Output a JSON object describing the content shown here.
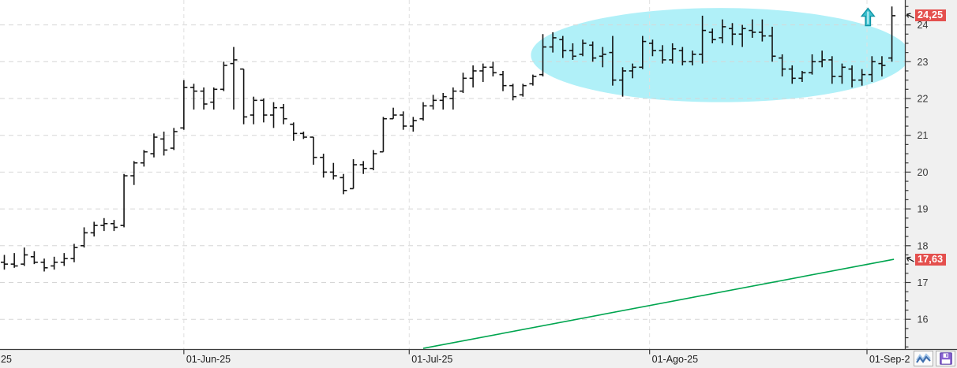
{
  "chart_data": {
    "type": "ohlc-bar",
    "title": "",
    "xlabel": "",
    "ylabel": "",
    "x_ticks": [
      {
        "label": "25",
        "bar": -0.4,
        "tick": false
      },
      {
        "label": "01-Jun-25",
        "bar": 18.0,
        "tick": true
      },
      {
        "label": "01-Jul-25",
        "bar": 40.6,
        "tick": true
      },
      {
        "label": "01-Ago-25",
        "bar": 64.7,
        "tick": true
      },
      {
        "label": "01-Sep-2",
        "bar": 86.5,
        "tick": true
      }
    ],
    "y_axis": {
      "labels": [
        16,
        17,
        18,
        19,
        20,
        21,
        22,
        23,
        24
      ],
      "minor_step": 0.25,
      "major_step": 1,
      "min": 15.25,
      "max": 24.5
    },
    "grid": true,
    "legend": "none",
    "ohlc": [
      [
        17.55,
        17.75,
        17.35,
        17.5
      ],
      [
        17.5,
        17.8,
        17.4,
        17.45
      ],
      [
        17.5,
        17.95,
        17.45,
        17.75
      ],
      [
        17.7,
        17.85,
        17.5,
        17.55
      ],
      [
        17.55,
        17.65,
        17.3,
        17.4
      ],
      [
        17.45,
        17.7,
        17.35,
        17.55
      ],
      [
        17.55,
        17.8,
        17.45,
        17.65
      ],
      [
        17.65,
        18.05,
        17.55,
        17.95
      ],
      [
        18,
        18.5,
        17.95,
        18.35
      ],
      [
        18.35,
        18.65,
        18.25,
        18.55
      ],
      [
        18.55,
        18.75,
        18.4,
        18.6
      ],
      [
        18.6,
        18.7,
        18.4,
        18.5
      ],
      [
        18.55,
        19.95,
        18.5,
        19.9
      ],
      [
        19.9,
        20.3,
        19.65,
        20.25
      ],
      [
        20.25,
        20.6,
        20.15,
        20.55
      ],
      [
        20.5,
        21.05,
        20.4,
        20.95
      ],
      [
        20.9,
        21.1,
        20.45,
        20.6
      ],
      [
        20.65,
        21.2,
        20.6,
        21.1
      ],
      [
        21.2,
        22.5,
        21.15,
        22.3
      ],
      [
        22.3,
        22.4,
        21.7,
        22.2
      ],
      [
        22.2,
        22.3,
        21.7,
        21.85
      ],
      [
        21.9,
        22.3,
        21.7,
        22.25
      ],
      [
        22.25,
        23,
        22.2,
        22.9
      ],
      [
        22.95,
        23.4,
        21.7,
        23.05
      ],
      [
        22.8,
        22.8,
        21.3,
        21.5
      ],
      [
        21.55,
        22.05,
        21.3,
        21.95
      ],
      [
        21.95,
        22,
        21.35,
        21.55
      ],
      [
        21.55,
        21.9,
        21.2,
        21.75
      ],
      [
        21.75,
        21.85,
        21.3,
        21.45
      ],
      [
        21.3,
        21.35,
        20.85,
        21.05
      ],
      [
        21.05,
        21.1,
        20.9,
        20.95
      ],
      [
        20.95,
        20.95,
        20.2,
        20.4
      ],
      [
        20.4,
        20.5,
        19.85,
        20
      ],
      [
        20,
        20.25,
        19.8,
        19.9
      ],
      [
        19.85,
        19.95,
        19.4,
        19.5
      ],
      [
        19.55,
        20.35,
        19.55,
        20.2
      ],
      [
        20.2,
        20.3,
        19.95,
        20.1
      ],
      [
        20.1,
        20.6,
        20.05,
        20.5
      ],
      [
        20.55,
        21.5,
        20.55,
        21.45
      ],
      [
        21.45,
        21.75,
        21.45,
        21.55
      ],
      [
        21.55,
        21.65,
        21.15,
        21.25
      ],
      [
        21.25,
        21.5,
        21.1,
        21.4
      ],
      [
        21.45,
        21.9,
        21.4,
        21.8
      ],
      [
        21.8,
        22.1,
        21.7,
        21.95
      ],
      [
        21.95,
        22.15,
        21.7,
        22.05
      ],
      [
        22,
        22.3,
        21.7,
        22.2
      ],
      [
        22.2,
        22.7,
        22.15,
        22.55
      ],
      [
        22.55,
        22.9,
        22.3,
        22.75
      ],
      [
        22.75,
        22.95,
        22.45,
        22.85
      ],
      [
        22.85,
        23,
        22.6,
        22.7
      ],
      [
        22.65,
        22.75,
        22.2,
        22.35
      ],
      [
        22.35,
        22.4,
        21.95,
        22.05
      ],
      [
        22.1,
        22.4,
        22.05,
        22.35
      ],
      [
        22.4,
        22.65,
        22.35,
        22.6
      ],
      [
        22.65,
        23.75,
        22.6,
        23.4
      ],
      [
        23.4,
        23.8,
        23.25,
        23.65
      ],
      [
        23.6,
        23.7,
        23.1,
        23.3
      ],
      [
        23.3,
        23.5,
        23.05,
        23.15
      ],
      [
        23.2,
        23.6,
        23.15,
        23.5
      ],
      [
        23.45,
        23.55,
        23,
        23.1
      ],
      [
        23.15,
        23.4,
        22.85,
        23.2
      ],
      [
        23.25,
        23.7,
        22.35,
        22.5
      ],
      [
        22.5,
        22.85,
        22.05,
        22.75
      ],
      [
        22.75,
        22.95,
        22.55,
        22.85
      ],
      [
        22.85,
        23.7,
        22.8,
        23.55
      ],
      [
        23.5,
        23.6,
        23.15,
        23.3
      ],
      [
        23.3,
        23.45,
        22.95,
        23.05
      ],
      [
        23.05,
        23.5,
        22.95,
        23.35
      ],
      [
        23.3,
        23.4,
        22.9,
        23
      ],
      [
        23,
        23.3,
        22.9,
        23.2
      ],
      [
        23.2,
        24.25,
        22.95,
        23.85
      ],
      [
        23.8,
        23.9,
        23.5,
        23.6
      ],
      [
        23.65,
        24.15,
        23.5,
        23.95
      ],
      [
        23.9,
        24.05,
        23.45,
        23.75
      ],
      [
        23.75,
        24,
        23.4,
        23.9
      ],
      [
        23.85,
        24.15,
        23.65,
        23.8
      ],
      [
        23.8,
        24.15,
        23.55,
        23.7
      ],
      [
        23.7,
        23.95,
        23,
        23.15
      ],
      [
        23.1,
        23.2,
        22.6,
        22.8
      ],
      [
        22.8,
        22.9,
        22.4,
        22.55
      ],
      [
        22.55,
        22.75,
        22.45,
        22.7
      ],
      [
        22.7,
        23.2,
        22.65,
        23
      ],
      [
        23,
        23.3,
        22.85,
        23.05
      ],
      [
        23.05,
        23.15,
        22.4,
        22.6
      ],
      [
        22.6,
        22.95,
        22.4,
        22.85
      ],
      [
        22.8,
        22.9,
        22.3,
        22.5
      ],
      [
        22.5,
        22.8,
        22.35,
        22.65
      ],
      [
        22.65,
        23.15,
        22.45,
        23
      ],
      [
        22.95,
        23.15,
        22.6,
        22.9
      ],
      [
        23.1,
        24.5,
        23,
        24.25
      ]
    ],
    "price_markers": [
      {
        "label": "24,25",
        "price": 24.25
      },
      {
        "label": "17,63",
        "price": 17.63
      }
    ],
    "trend_line": {
      "start_bar": 42.0,
      "start_price": 15.21,
      "end_bar": 89.2,
      "end_price": 17.63
    },
    "highlight_ellipse": {
      "center_bar": 71.8,
      "center_price": 23.18,
      "radius_bars": 19,
      "radius_price": 1.28
    },
    "signal_arrow": {
      "bar": 86.6,
      "tip_price": 24.45
    },
    "colors": {
      "bar": "#141414",
      "grid": "#d6d6d6",
      "axis_line": "#3c3c3c",
      "axis_bg": "#f0f0f0",
      "label_text": "#1c1c1c",
      "y_label_text": "#3a3a3a",
      "tag_bg": "#e4504e",
      "tag_text": "#ffffff",
      "ellipse": "#b0f0f8",
      "trend": "#00a54f",
      "arrow_fill": "#3cc0cf",
      "arrow_stroke": "#0f93a4",
      "arrow_inner": "#b4ecf2"
    }
  },
  "statusbar": {
    "icons": [
      {
        "name": "zigzag-icon"
      },
      {
        "name": "floppy-save-icon"
      }
    ]
  }
}
